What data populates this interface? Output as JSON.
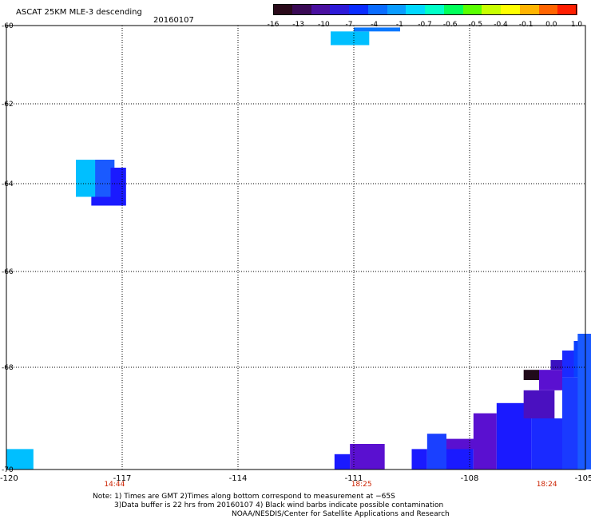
{
  "title": "ASCAT 25KM MLE-3 descending",
  "date": "20160107",
  "colorbar": {
    "labels": [
      "-16",
      "-13",
      "-10",
      "-7",
      "-4",
      "-1",
      "-0.7",
      "-0.6",
      "-0.5",
      "-0.4",
      "-0.1",
      "0.0",
      "1.0"
    ],
    "colors": [
      "#2a0a1a",
      "#3a0a55",
      "#4a10a0",
      "#2e1ad8",
      "#0a2cff",
      "#0a6cff",
      "#0a9cff",
      "#00d8ff",
      "#00ffc8",
      "#00ff5a",
      "#5aff00",
      "#c8ff00",
      "#ffff00",
      "#ffb400",
      "#ff6400",
      "#ff1e00"
    ]
  },
  "map": {
    "lon_ticks": [
      "-120",
      "-117",
      "-114",
      "-111",
      "-108",
      "-105"
    ],
    "lon_values": [
      -120,
      -117,
      -114,
      -111,
      -108,
      -105
    ],
    "lat_ticks": [
      "-60",
      "-62",
      "-64",
      "-66",
      "-68",
      "-70"
    ],
    "lat_values": [
      -60,
      -62,
      -64,
      -66,
      -68,
      -70
    ],
    "times": [
      "14:44",
      "18:25",
      "18:24"
    ],
    "time_lons": [
      -117.2,
      -110.8,
      -106.0
    ],
    "swaths": [
      {
        "lon": [
          -111.6,
          -110.6
        ],
        "lat": [
          -60.15,
          -60.5
        ],
        "color": "#00bfff"
      },
      {
        "lon": [
          -111.0,
          -109.8
        ],
        "lat": [
          -60.05,
          -60.15
        ],
        "color": "#0a78ff"
      },
      {
        "lon": [
          -118.2,
          -117.6
        ],
        "lat": [
          -63.4,
          -64.3
        ],
        "color": "#00bfff"
      },
      {
        "lon": [
          -117.7,
          -117.2
        ],
        "lat": [
          -63.4,
          -64.3
        ],
        "color": "#1a5aff"
      },
      {
        "lon": [
          -117.3,
          -116.9
        ],
        "lat": [
          -63.6,
          -64.5
        ],
        "color": "#1a1aff"
      },
      {
        "lon": [
          -117.8,
          -117.3
        ],
        "lat": [
          -64.3,
          -64.5
        ],
        "color": "#1a1aff"
      },
      {
        "lon": [
          -120,
          -119.3
        ],
        "lat": [
          -69.6,
          -70
        ],
        "color": "#00bfff"
      },
      {
        "lon": [
          -111.5,
          -111.1
        ],
        "lat": [
          -69.7,
          -70
        ],
        "color": "#1a1aff"
      },
      {
        "lon": [
          -111.1,
          -110.2
        ],
        "lat": [
          -69.5,
          -70
        ],
        "color": "#5a10d0"
      },
      {
        "lon": [
          -109.5,
          -109.1
        ],
        "lat": [
          -69.6,
          -70
        ],
        "color": "#1a1aff"
      },
      {
        "lon": [
          -109.1,
          -108.6
        ],
        "lat": [
          -69.3,
          -70
        ],
        "color": "#1a40ff"
      },
      {
        "lon": [
          -108.6,
          -107.9
        ],
        "lat": [
          -69.5,
          -70
        ],
        "color": "#1a1aff"
      },
      {
        "lon": [
          -108.6,
          -107.8
        ],
        "lat": [
          -69.4,
          -69.6
        ],
        "color": "#5a10d0"
      },
      {
        "lon": [
          -107.9,
          -107.3
        ],
        "lat": [
          -68.9,
          -70
        ],
        "color": "#5a10d0"
      },
      {
        "lon": [
          -107.3,
          -106.4
        ],
        "lat": [
          -68.7,
          -70
        ],
        "color": "#1a1aff"
      },
      {
        "lon": [
          -106.6,
          -105.8
        ],
        "lat": [
          -68.45,
          -69.0
        ],
        "color": "#4a10c0"
      },
      {
        "lon": [
          -106.4,
          -105.6
        ],
        "lat": [
          -69.0,
          -70
        ],
        "color": "#1a2aff"
      },
      {
        "lon": [
          -105.6,
          -105.0
        ],
        "lat": [
          -68.2,
          -70
        ],
        "color": "#1a3aff"
      },
      {
        "lon": [
          -106.6,
          -106.2
        ],
        "lat": [
          -68.05,
          -68.25
        ],
        "color": "#200a1a"
      },
      {
        "lon": [
          -106.2,
          -105.6
        ],
        "lat": [
          -68.05,
          -68.45
        ],
        "color": "#5a10d0"
      },
      {
        "lon": [
          -105.9,
          -105.6
        ],
        "lat": [
          -67.85,
          -68.05
        ],
        "color": "#3a10c0"
      },
      {
        "lon": [
          -105.6,
          -105.3
        ],
        "lat": [
          -67.65,
          -68.2
        ],
        "color": "#1a2aff"
      },
      {
        "lon": [
          -105.3,
          -105.0
        ],
        "lat": [
          -67.45,
          -68.2
        ],
        "color": "#0a40ff"
      },
      {
        "lon": [
          -105.2,
          -104.75
        ],
        "lat": [
          -67.3,
          -70
        ],
        "color": "#1a5aff"
      }
    ]
  },
  "notes": {
    "line1": "Note: 1) Times are GMT 2)Times along bottom correspond to measurement at −65S",
    "line2": "3)Data buffer is 22 hrs from 20160107 4) Black wind barbs indicate possible contamination",
    "line3": "NOAA/NESDIS/Center for Satellite Applications and Research"
  }
}
